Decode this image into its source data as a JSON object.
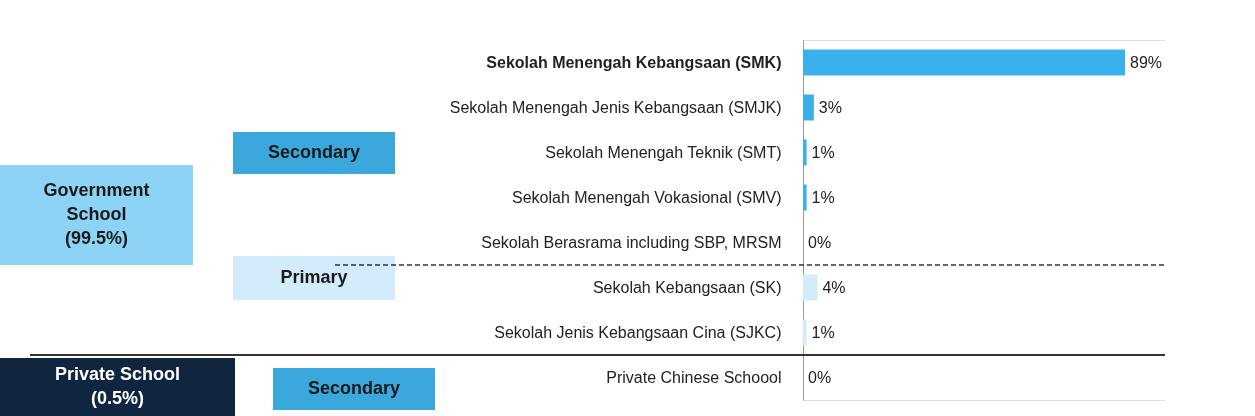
{
  "chart_data": {
    "type": "bar",
    "orientation": "horizontal",
    "categories": [
      "Sekolah Menengah Kebangsaan (SMK)",
      "Sekolah Menengah Jenis Kebangsaan (SMJK)",
      "Sekolah Menengah Teknik (SMT)",
      "Sekolah Menengah Vokasional (SMV)",
      "Sekolah Berasrama including SBP, MRSM",
      "Sekolah Kebangsaan (SK)",
      "Sekolah Jenis Kebangsaan Cina (SJKC)",
      "Private Chinese Schoool"
    ],
    "values": [
      89,
      3,
      1,
      1,
      0,
      4,
      1,
      0
    ],
    "colors": [
      "#3ab0ec",
      "#3ab0ec",
      "#3ab0ec",
      "#3ab0ec",
      "#3ab0ec",
      "#d3ecfb",
      "#d3ecfb",
      "#3ab0ec"
    ],
    "value_labels": [
      "89%",
      "3%",
      "1%",
      "1%",
      "0%",
      "4%",
      "1%",
      "0%"
    ],
    "annotations": [
      "Government School (99.5%)",
      "Secondary",
      "Primary",
      "Private School (0.5%)",
      "Secondary"
    ],
    "grid": false,
    "legend": false
  }
}
